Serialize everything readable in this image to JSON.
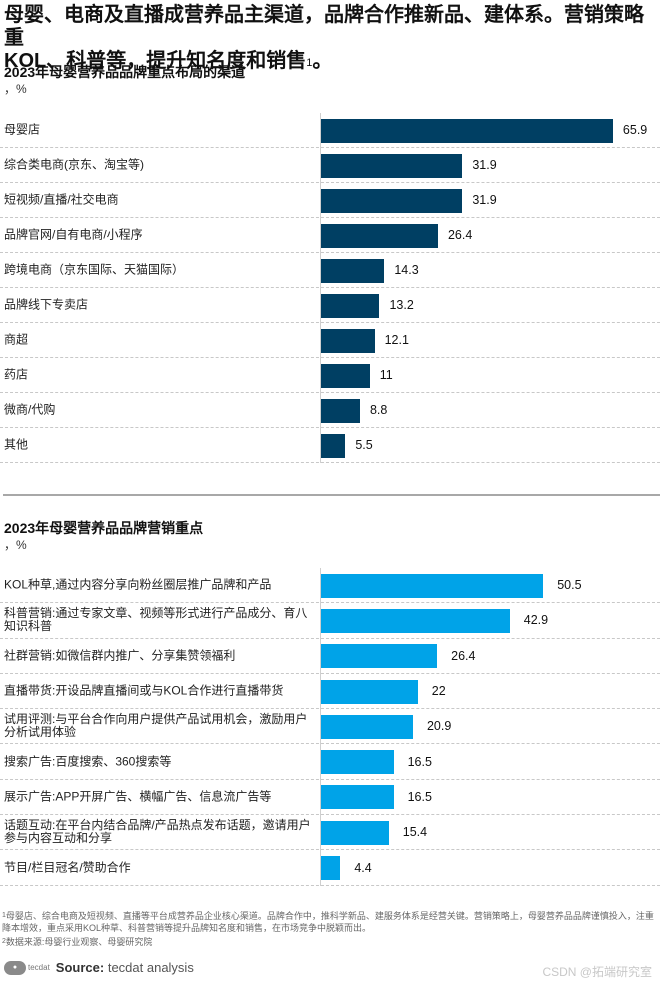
{
  "headline": {
    "line1": "母婴、电商及直播成营养品主渠道，品牌合作推新品、建体系。营销策略重",
    "line2": "KOL、科普等，提升知名度和销售",
    "sup": "1",
    "end": "。"
  },
  "colors": {
    "chart1_bar": "#003f63",
    "chart2_bar": "#00a3e8",
    "gridline": "#c8c8c8",
    "divider": "#a8a8a8"
  },
  "chart_data": [
    {
      "type": "bar",
      "orientation": "horizontal",
      "title": "2023年母婴营养品品牌重点布局的渠道",
      "unit": "，%",
      "categories": [
        "母婴店",
        "综合类电商(京东、淘宝等)",
        "短视频/直播/社交电商",
        "品牌官网/自有电商/小程序",
        "跨境电商（京东国际、天猫国际）",
        "品牌线下专卖店",
        "商超",
        "药店",
        "微商/代购",
        "其他"
      ],
      "values": [
        65.9,
        31.9,
        31.9,
        26.4,
        14.3,
        13.2,
        12.1,
        11,
        8.8,
        5.5
      ],
      "value_labels": [
        "65.9",
        "31.9",
        "31.9",
        "26.4",
        "14.3",
        "13.2",
        "12.1",
        "11",
        "8.8",
        "5.5"
      ],
      "xlabel": "",
      "ylabel": "",
      "grid": "dotted row separators",
      "legend": "none"
    },
    {
      "type": "bar",
      "orientation": "horizontal",
      "title": "2023年母婴营养品品牌营销重点",
      "unit": "，%",
      "categories": [
        "KOL种草,通过内容分享向粉丝圈层推广品牌和产品",
        "科普营销:通过专家文章、视频等形式进行产品成分、育八知识科普",
        "社群营销:如微信群内推广、分享集赞领福利",
        "直播带货:开设品牌直播间或与KOL合作进行直播带货",
        "试用评测:与平台合作向用户提供产品试用机会，激励用户分析试用体验",
        "搜索广告:百度搜索、360搜索等",
        "展示广告:APP开屏广告、横幅广告、信息流广告等",
        "话题互动:在平台内结合品牌/产品热点发布话题，邀请用户参与内容互动和分享",
        "节目/栏目冠名/赞助合作"
      ],
      "values": [
        50.5,
        42.9,
        26.4,
        22,
        20.9,
        16.5,
        16.5,
        15.4,
        4.4
      ],
      "value_labels": [
        "50.5",
        "42.9",
        "26.4",
        "22",
        "20.9",
        "16.5",
        "16.5",
        "15.4",
        "4.4"
      ],
      "xlabel": "",
      "ylabel": "",
      "grid": "dotted row separators",
      "legend": "none"
    }
  ],
  "footnotes": {
    "note1_sup": "1",
    "note1": "母婴店、综合电商及短视频、直播等平台成营养品企业核心渠道。品牌合作中，推科学新品、建服务体系是经营关键。营销策略上，母婴营养品品牌谨慎投入，注重降本增效，重点采用KOL种草、科普营销等提升品牌知名度和销售，在市场竞争中脱颖而出。",
    "note2_sup": "2",
    "note2": "数据来源:母婴行业观察、母婴研究院"
  },
  "source": {
    "logo": "tecdat",
    "label": "Source:",
    "text": "tecdat analysis"
  },
  "watermark": "CSDN @拓端研究室"
}
